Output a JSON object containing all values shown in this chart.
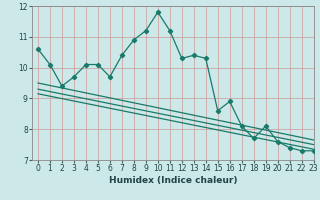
{
  "xlabel": "Humidex (Indice chaleur)",
  "background_color": "#cce8e8",
  "grid_color": "#bbcccc",
  "line_color": "#1a7a6a",
  "main_series_x": [
    0,
    1,
    2,
    3,
    4,
    5,
    6,
    7,
    8,
    9,
    10,
    11,
    12,
    13,
    14,
    15,
    16,
    17,
    18,
    19,
    20,
    21,
    22,
    23
  ],
  "main_series_y": [
    10.6,
    10.1,
    9.4,
    9.7,
    10.1,
    10.1,
    9.7,
    10.4,
    10.9,
    11.2,
    11.8,
    11.2,
    10.3,
    10.4,
    10.3,
    8.6,
    8.9,
    8.1,
    7.7,
    8.1,
    7.6,
    7.4,
    7.3,
    7.3
  ],
  "trend1_x": [
    0,
    23
  ],
  "trend1_y": [
    9.5,
    7.65
  ],
  "trend2_x": [
    0,
    23
  ],
  "trend2_y": [
    9.3,
    7.5
  ],
  "trend3_x": [
    0,
    23
  ],
  "trend3_y": [
    9.15,
    7.35
  ],
  "ylim": [
    7,
    12
  ],
  "xlim": [
    -0.5,
    23
  ],
  "yticks": [
    7,
    8,
    9,
    10,
    11,
    12
  ],
  "xticks": [
    0,
    1,
    2,
    3,
    4,
    5,
    6,
    7,
    8,
    9,
    10,
    11,
    12,
    13,
    14,
    15,
    16,
    17,
    18,
    19,
    20,
    21,
    22,
    23
  ],
  "tick_fontsize": 5.5,
  "xlabel_fontsize": 6.5
}
